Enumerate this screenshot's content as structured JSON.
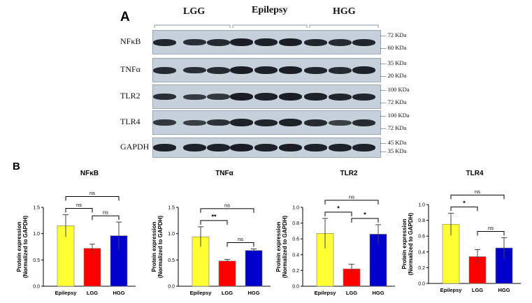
{
  "panel_a": {
    "letter": "A",
    "groups": [
      "LGG",
      "Epilepsy",
      "HGG"
    ],
    "blots": [
      {
        "name": "NFκB",
        "markers": [
          "72 KDa",
          "60 KDa"
        ]
      },
      {
        "name": "TNFα",
        "markers": [
          "35 KDa",
          "20 KDa"
        ]
      },
      {
        "name": "TLR2",
        "markers": [
          "100 KDa",
          "72 KDa"
        ]
      },
      {
        "name": "TLR4",
        "markers": [
          "100 KDa",
          "72 KDa"
        ]
      },
      {
        "name": "GAPDH",
        "markers": [
          "45 KDa",
          "35 KDa"
        ]
      }
    ]
  },
  "panel_b": {
    "letter": "B"
  },
  "chart_data": [
    {
      "type": "bar",
      "title": "NFκB",
      "ylabel": "Protein expression\n(Normalized to GAPDH)",
      "categories": [
        "Epilepsy",
        "LGG",
        "HGG"
      ],
      "values": [
        1.15,
        0.72,
        0.96
      ],
      "errors": [
        0.21,
        0.08,
        0.26
      ],
      "colors": [
        "#ffff33",
        "#ff0000",
        "#0000cc"
      ],
      "ylim": [
        0,
        1.5
      ],
      "yticks": [
        "0.0",
        "0.5",
        "1.0",
        "1.5"
      ],
      "comparisons": [
        {
          "from": 0,
          "to": 1,
          "label": "ns"
        },
        {
          "from": 1,
          "to": 2,
          "label": "ns"
        },
        {
          "from": 0,
          "to": 2,
          "label": "ns"
        }
      ]
    },
    {
      "type": "bar",
      "title": "TNFα",
      "ylabel": "Protein expression\n(Normalized to GAPDH)",
      "categories": [
        "Epilepsy",
        "LGG",
        "HGG"
      ],
      "values": [
        0.94,
        0.48,
        0.68
      ],
      "errors": [
        0.19,
        0.03,
        0.03
      ],
      "colors": [
        "#ffff33",
        "#ff0000",
        "#0000cc"
      ],
      "ylim": [
        0,
        1.5
      ],
      "yticks": [
        "0.0",
        "0.5",
        "1.0",
        "1.5"
      ],
      "comparisons": [
        {
          "from": 0,
          "to": 1,
          "label": "**"
        },
        {
          "from": 1,
          "to": 2,
          "label": "ns"
        },
        {
          "from": 0,
          "to": 2,
          "label": "ns"
        }
      ]
    },
    {
      "type": "bar",
      "title": "TLR2",
      "ylabel": "Protein expression\n(Normalized to GAPDH)",
      "categories": [
        "Epilepsy",
        "LGG",
        "HGG"
      ],
      "values": [
        0.67,
        0.22,
        0.66
      ],
      "errors": [
        0.19,
        0.06,
        0.12
      ],
      "colors": [
        "#ffff33",
        "#ff0000",
        "#0000cc"
      ],
      "ylim": [
        0,
        1.0
      ],
      "yticks": [
        "0.0",
        "0.2",
        "0.4",
        "0.6",
        "0.8",
        "1.0"
      ],
      "comparisons": [
        {
          "from": 0,
          "to": 1,
          "label": "*"
        },
        {
          "from": 1,
          "to": 2,
          "label": "*"
        },
        {
          "from": 0,
          "to": 2,
          "label": "ns"
        }
      ]
    },
    {
      "type": "bar",
      "title": "TLR4",
      "ylabel": "Protein expression\n(Normalized to GAPDH)",
      "categories": [
        "Epilepsy",
        "LGG",
        "HGG"
      ],
      "values": [
        0.75,
        0.34,
        0.45
      ],
      "errors": [
        0.14,
        0.09,
        0.13
      ],
      "colors": [
        "#ffff33",
        "#ff0000",
        "#0000cc"
      ],
      "ylim": [
        0,
        1.0
      ],
      "yticks": [
        "0.0",
        "0.2",
        "0.4",
        "0.6",
        "0.8",
        "1.0"
      ],
      "comparisons": [
        {
          "from": 0,
          "to": 1,
          "label": "*"
        },
        {
          "from": 1,
          "to": 2,
          "label": "ns"
        },
        {
          "from": 0,
          "to": 2,
          "label": "ns"
        }
      ]
    }
  ]
}
